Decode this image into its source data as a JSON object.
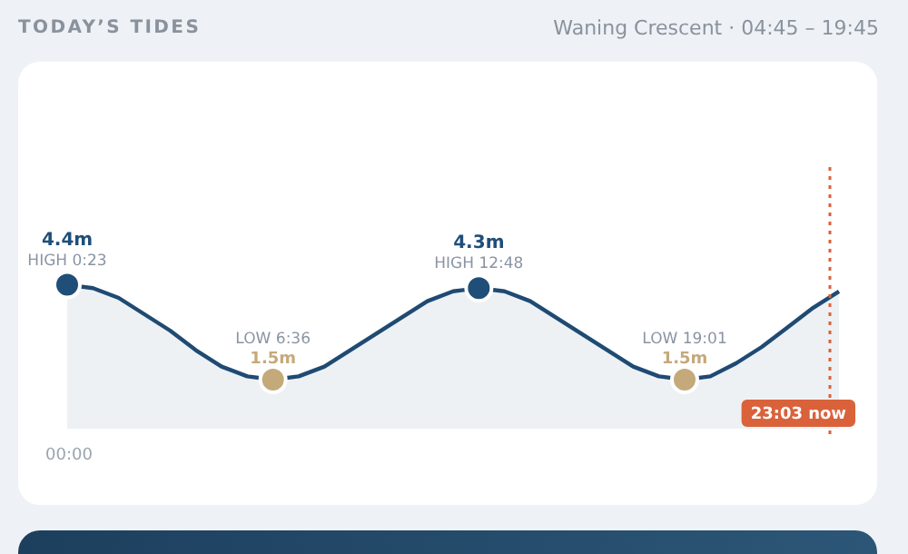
{
  "chart_data": {
    "type": "area",
    "title": "TODAY’S TIDES",
    "subtitle": "Waning Crescent · 04:45 – 19:45",
    "ylim": [
      0,
      8
    ],
    "tick_labels": false,
    "grid": false,
    "legend": false,
    "categories": [
      null,
      null,
      null,
      null,
      null,
      null,
      null,
      null,
      null,
      null,
      null,
      null,
      null,
      null,
      null,
      null,
      null,
      null,
      null,
      null,
      null,
      null,
      null,
      null,
      null,
      null,
      null,
      null,
      null,
      null,
      null
    ],
    "series": [
      {
        "color": "#1f4a73",
        "values": [
          4.4,
          4.3,
          4,
          3.5,
          3,
          2.4,
          1.9,
          1.6,
          1.5,
          1.6,
          1.9,
          2.4,
          2.9,
          3.4,
          3.9,
          4.2,
          4.3,
          4.2,
          3.9,
          3.4,
          2.9,
          2.4,
          1.9,
          1.6,
          1.5,
          1.6,
          2,
          2.5,
          3.1,
          3.7,
          4.2
        ],
        "colors": [
          "#1f4e79",
          "#1f4a73",
          "#1f4a73",
          "#1f4a73",
          "#1f4a73",
          "#1f4a73",
          "#1f4a73",
          "#1f4a73",
          "#c4a97a",
          "#1f4a73",
          "#1f4a73",
          "#1f4a73",
          "#1f4a73",
          "#1f4a73",
          "#1f4a73",
          "#1f4a73",
          "#1f4e79",
          "#1f4a73",
          "#1f4a73",
          "#1f4a73",
          "#1f4a73",
          "#1f4a73",
          "#1f4a73",
          "#1f4a73",
          "#c4a97a",
          "#1f4a73",
          "#1f4a73",
          "#1f4a73",
          "#1f4a73",
          "#1f4a73",
          "#1f4a73"
        ],
        "value_labels": [
          "4.4m",
          null,
          null,
          null,
          null,
          null,
          null,
          null,
          "1.5m",
          null,
          null,
          null,
          null,
          null,
          null,
          null,
          "4.3m",
          null,
          null,
          null,
          null,
          null,
          null,
          null,
          "1.5m",
          null,
          null,
          null,
          null,
          null,
          null
        ]
      }
    ],
    "annotations": [
      "HIGH 0:23",
      "LOW 6:36",
      "HIGH 12:48",
      "LOW 19:01",
      "00:00",
      "23:03 now"
    ]
  }
}
